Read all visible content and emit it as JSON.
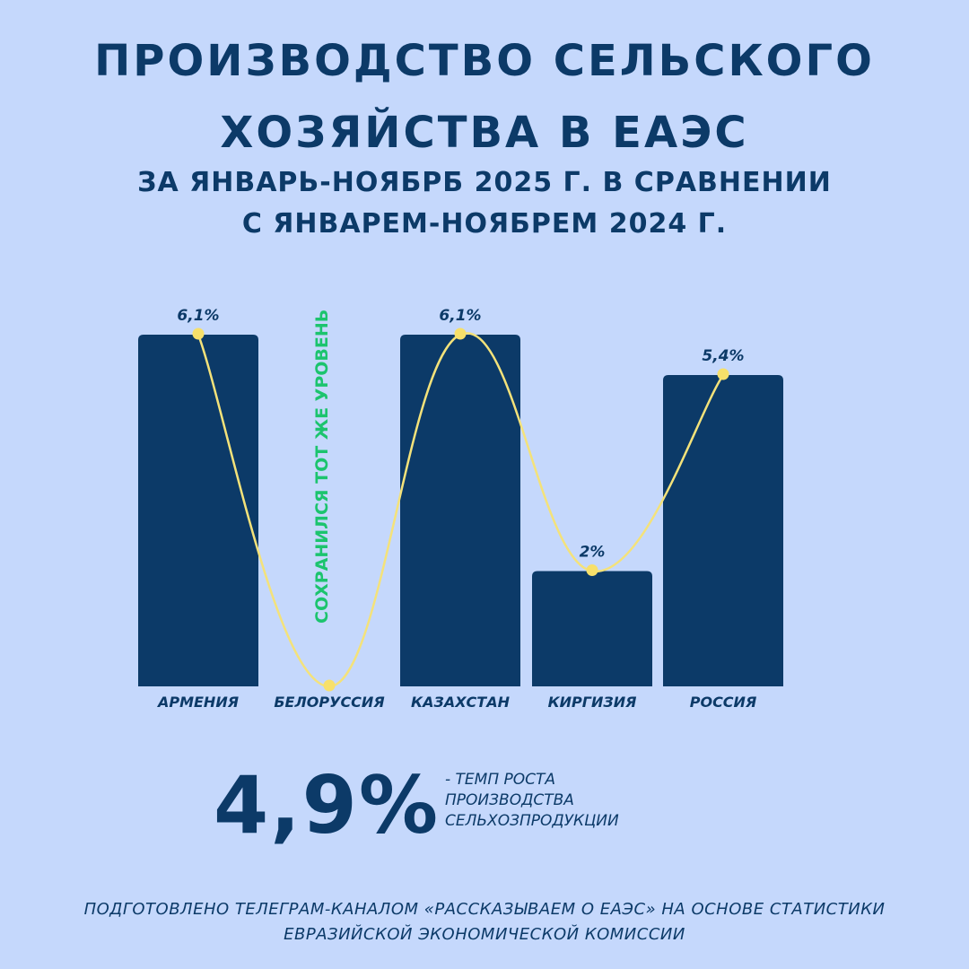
{
  "header": {
    "title_line1": "ПРОИЗВОДСТВО СЕЛЬСКОГО",
    "title_line2": "ХОЗЯЙСТВА В ЕАЭС",
    "subtitle_line1": "ЗА ЯНВАРЬ-НОЯБРБ 2025 Г. В СРАВНЕНИИ",
    "subtitle_line2": "С ЯНВАРЕМ-НОЯБРЕМ 2024 Г."
  },
  "chart_data": {
    "type": "bar",
    "categories": [
      "АРМЕНИЯ",
      "БЕЛОРУССИЯ",
      "КАЗАХСТАН",
      "КИРГИЗИЯ",
      "РОССИЯ"
    ],
    "values": [
      6.1,
      0,
      6.1,
      2,
      5.4
    ],
    "data_labels": [
      "6,1%",
      "",
      "6,1%",
      "2%",
      "5,4%"
    ],
    "annotation": "СОХРАНИЛСЯ ТОТ ЖЕ УРОВЕНЬ",
    "ylim": [
      0,
      6.1
    ],
    "grid": false,
    "colors": {
      "bar": "#0c3a68",
      "line": "#f4e27a",
      "point": "#f7e06a",
      "annotation": "#1cc46e"
    }
  },
  "summary": {
    "value": "4,9%",
    "caption_line1": "- ТЕМП РОСТА",
    "caption_line2": "ПРОИЗВОДСТВА",
    "caption_line3": "СЕЛЬХОЗПРОДУКЦИИ"
  },
  "footer": {
    "line1": "ПОДГОТОВЛЕНО ТЕЛЕГРАМ-КАНАЛОМ «РАССКАЗЫВАЕМ О ЕАЭС» НА ОСНОВЕ СТАТИСТИКИ",
    "line2": "ЕВРАЗИЙСКОЙ ЭКОНОМИЧЕСКОЙ КОМИССИИ"
  }
}
